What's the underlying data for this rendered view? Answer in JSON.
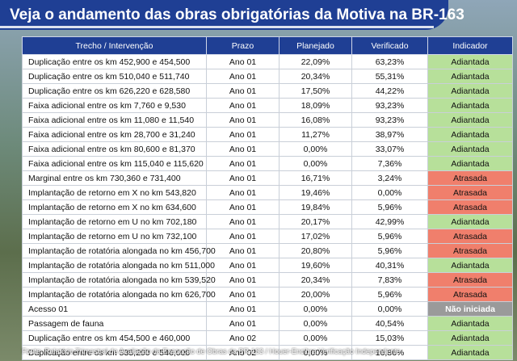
{
  "title": "Veja o andamento das obras obrigatórias da Motiva na BR-163",
  "columns": [
    "Trecho / Intervenção",
    "Prazo",
    "Planejado",
    "Verificado",
    "Indicador"
  ],
  "rows": [
    {
      "trecho": "Duplicação entre os km 452,900 e 454,500",
      "prazo": "Ano 01",
      "planejado": "22,09%",
      "verificado": "63,23%",
      "indicador": "Adiantada",
      "status": "green"
    },
    {
      "trecho": "Duplicação entre os km 510,040 e 511,740",
      "prazo": "Ano 01",
      "planejado": "20,34%",
      "verificado": "55,31%",
      "indicador": "Adiantada",
      "status": "green"
    },
    {
      "trecho": "Duplicação entre os km 626,220 e 628,580",
      "prazo": "Ano 01",
      "planejado": "17,50%",
      "verificado": "44,22%",
      "indicador": "Adiantada",
      "status": "green"
    },
    {
      "trecho": "Faixa adicional entre os km 7,760 e 9,530",
      "prazo": "Ano 01",
      "planejado": "18,09%",
      "verificado": "93,23%",
      "indicador": "Adiantada",
      "status": "green"
    },
    {
      "trecho": "Faixa adicional entre os km 11,080 e 11,540",
      "prazo": "Ano 01",
      "planejado": "16,08%",
      "verificado": "93,23%",
      "indicador": "Adiantada",
      "status": "green"
    },
    {
      "trecho": "Faixa adicional entre os km 28,700 e 31,240",
      "prazo": "Ano 01",
      "planejado": "11,27%",
      "verificado": "38,97%",
      "indicador": "Adiantada",
      "status": "green"
    },
    {
      "trecho": "Faixa adicional entre os km 80,600 e 81,370",
      "prazo": "Ano 01",
      "planejado": "0,00%",
      "verificado": "33,07%",
      "indicador": "Adiantada",
      "status": "green"
    },
    {
      "trecho": "Faixa adicional entre os km 115,040 e 115,620",
      "prazo": "Ano 01",
      "planejado": "0,00%",
      "verificado": "7,36%",
      "indicador": "Adiantada",
      "status": "green"
    },
    {
      "trecho": "Marginal entre os km 730,360 e 731,400",
      "prazo": "Ano 01",
      "planejado": "16,71%",
      "verificado": "3,24%",
      "indicador": "Atrasada",
      "status": "red"
    },
    {
      "trecho": "Implantação de retorno em X no km 543,820",
      "prazo": "Ano 01",
      "planejado": "19,46%",
      "verificado": "0,00%",
      "indicador": "Atrasada",
      "status": "red"
    },
    {
      "trecho": "Implantação de retorno em X no km 634,600",
      "prazo": "Ano 01",
      "planejado": "19,84%",
      "verificado": "5,96%",
      "indicador": "Atrasada",
      "status": "red"
    },
    {
      "trecho": "Implantação de retorno em U no km 702,180",
      "prazo": "Ano 01",
      "planejado": "20,17%",
      "verificado": "42,99%",
      "indicador": "Adiantada",
      "status": "green"
    },
    {
      "trecho": "Implantação de retorno em U no km 732,100",
      "prazo": "Ano 01",
      "planejado": "17,02%",
      "verificado": "5,96%",
      "indicador": "Atrasada",
      "status": "red"
    },
    {
      "trecho": "Implantação de rotatória alongada no km 456,700",
      "prazo": "Ano 01",
      "planejado": "20,80%",
      "verificado": "5,96%",
      "indicador": "Atrasada",
      "status": "red"
    },
    {
      "trecho": "Implantação de rotatória alongada no km 511,000",
      "prazo": "Ano 01",
      "planejado": "19,60%",
      "verificado": "40,31%",
      "indicador": "Adiantada",
      "status": "green"
    },
    {
      "trecho": "Implantação de rotatória alongada no km 539,520",
      "prazo": "Ano 01",
      "planejado": "20,34%",
      "verificado": "7,83%",
      "indicador": "Atrasada",
      "status": "red"
    },
    {
      "trecho": "Implantação de rotatória alongada no km 626,700",
      "prazo": "Ano 01",
      "planejado": "20,00%",
      "verificado": "5,96%",
      "indicador": "Atrasada",
      "status": "red"
    },
    {
      "trecho": "Acesso 01",
      "prazo": "Ano 01",
      "planejado": "0,00%",
      "verificado": "0,00%",
      "indicador": "Não iniciada",
      "status": "gray"
    },
    {
      "trecho": "Passagem de fauna",
      "prazo": "Ano 01",
      "planejado": "0,00%",
      "verificado": "40,54%",
      "indicador": "Adiantada",
      "status": "green"
    },
    {
      "trecho": "Duplicação entre os km 454,500 e 460,000",
      "prazo": "Ano 02",
      "planejado": "0,00%",
      "verificado": "15,03%",
      "indicador": "Adiantada",
      "status": "green"
    },
    {
      "trecho": "Duplicação entre os km 535,200 e 546,000",
      "prazo": "Ano 02",
      "planejado": "0,00%",
      "verificado": "16,86%",
      "indicador": "Adiantada",
      "status": "green"
    }
  ],
  "colors": {
    "header": "#1f3f94",
    "green": "#b7e09a",
    "red": "#f07f6c",
    "gray": "#9a9a9a"
  },
  "footer": "Fonte: Relatório Trimestral de Avaliação da Execução de Obras da BR-163 / Houer-Encibra Verificação Independente"
}
